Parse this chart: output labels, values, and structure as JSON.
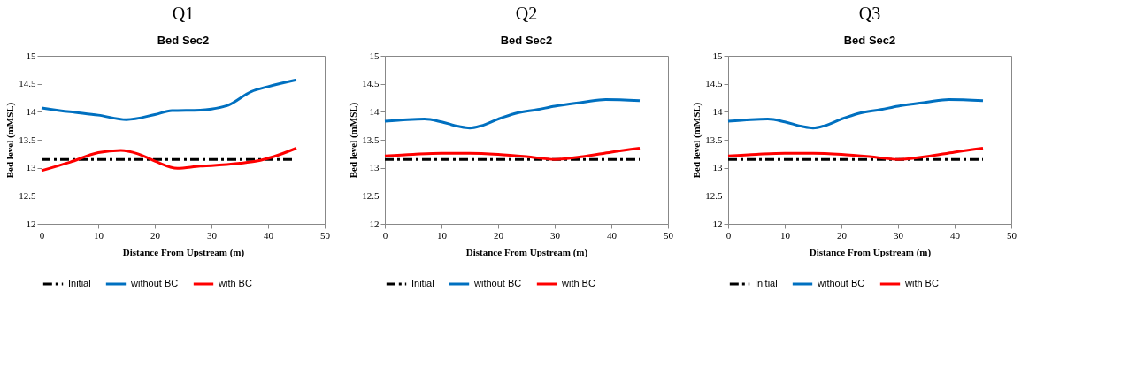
{
  "chart_data": [
    {
      "type": "line",
      "title": "Q1",
      "subtitle": "Bed Sec2",
      "xlabel": "Distance From Upstream (m)",
      "ylabel": "Bed level (mMSL)",
      "xlim": [
        0,
        50
      ],
      "xticks": [
        0,
        10,
        20,
        30,
        40,
        50
      ],
      "ylim": [
        12,
        15
      ],
      "yticks": [
        12,
        12.5,
        13,
        13.5,
        14,
        14.5,
        15
      ],
      "grid": false,
      "legend": "bottom",
      "marker": "none",
      "series": [
        {
          "name": "Initial",
          "color": "#000000",
          "line_style": "dashed",
          "x": [
            0,
            45
          ],
          "values": [
            13.15,
            13.15
          ]
        },
        {
          "name": "without BC",
          "color": "#0070c0",
          "line_style": "solid",
          "x": [
            0,
            5,
            10,
            15,
            20,
            23,
            28,
            30,
            33,
            37,
            40,
            45
          ],
          "values": [
            14.07,
            14.0,
            13.94,
            13.86,
            13.95,
            14.02,
            14.03,
            14.05,
            14.12,
            14.36,
            14.45,
            14.57
          ]
        },
        {
          "name": "with BC",
          "color": "#ff0000",
          "line_style": "solid",
          "x": [
            0,
            5,
            10,
            14,
            17,
            20,
            24,
            28,
            30,
            35,
            38,
            41,
            45
          ],
          "values": [
            12.95,
            13.1,
            13.27,
            13.31,
            13.25,
            13.12,
            12.99,
            13.03,
            13.04,
            13.08,
            13.12,
            13.2,
            13.35
          ]
        }
      ]
    },
    {
      "type": "line",
      "title": "Q2",
      "subtitle": "Bed Sec2",
      "xlabel": "Distance From Upstream (m)",
      "ylabel": "Bed level (mMSL)",
      "xlim": [
        0,
        50
      ],
      "xticks": [
        0,
        10,
        20,
        30,
        40,
        50
      ],
      "ylim": [
        12,
        15
      ],
      "yticks": [
        12,
        12.5,
        13,
        13.5,
        14,
        14.5,
        15
      ],
      "grid": false,
      "legend": "bottom",
      "marker": "none",
      "series": [
        {
          "name": "Initial",
          "color": "#000000",
          "line_style": "dashed",
          "x": [
            0,
            45
          ],
          "values": [
            13.15,
            13.15
          ]
        },
        {
          "name": "without BC",
          "color": "#0070c0",
          "line_style": "solid",
          "x": [
            0,
            4,
            7,
            10,
            13,
            15,
            17,
            20,
            23,
            27,
            30,
            35,
            39,
            45
          ],
          "values": [
            13.83,
            13.86,
            13.87,
            13.82,
            13.74,
            13.71,
            13.75,
            13.87,
            13.97,
            14.04,
            14.1,
            14.17,
            14.22,
            14.2
          ]
        },
        {
          "name": "with BC",
          "color": "#ff0000",
          "line_style": "solid",
          "x": [
            0,
            5,
            10,
            15,
            20,
            25,
            30,
            35,
            40,
            45
          ],
          "values": [
            13.21,
            13.24,
            13.26,
            13.26,
            13.24,
            13.2,
            13.15,
            13.2,
            13.28,
            13.35
          ]
        }
      ]
    },
    {
      "type": "line",
      "title": "Q3",
      "subtitle": "Bed Sec2",
      "xlabel": "Distance From Upstream (m)",
      "ylabel": "Bed level (mMSL)",
      "xlim": [
        0,
        50
      ],
      "xticks": [
        0,
        10,
        20,
        30,
        40,
        50
      ],
      "ylim": [
        12,
        15
      ],
      "yticks": [
        12,
        12.5,
        13,
        13.5,
        14,
        14.5,
        15
      ],
      "grid": false,
      "legend": "bottom",
      "marker": "none",
      "series": [
        {
          "name": "Initial",
          "color": "#000000",
          "line_style": "dashed",
          "x": [
            0,
            45
          ],
          "values": [
            13.15,
            13.15
          ]
        },
        {
          "name": "without BC",
          "color": "#0070c0",
          "line_style": "solid",
          "x": [
            0,
            4,
            7,
            10,
            13,
            15,
            17,
            20,
            23,
            27,
            30,
            35,
            39,
            45
          ],
          "values": [
            13.83,
            13.86,
            13.87,
            13.82,
            13.74,
            13.71,
            13.75,
            13.87,
            13.97,
            14.04,
            14.1,
            14.17,
            14.22,
            14.2
          ]
        },
        {
          "name": "with BC",
          "color": "#ff0000",
          "line_style": "solid",
          "x": [
            0,
            5,
            10,
            15,
            20,
            25,
            30,
            35,
            40,
            45
          ],
          "values": [
            13.21,
            13.24,
            13.26,
            13.26,
            13.24,
            13.2,
            13.15,
            13.2,
            13.28,
            13.35
          ]
        }
      ]
    }
  ]
}
